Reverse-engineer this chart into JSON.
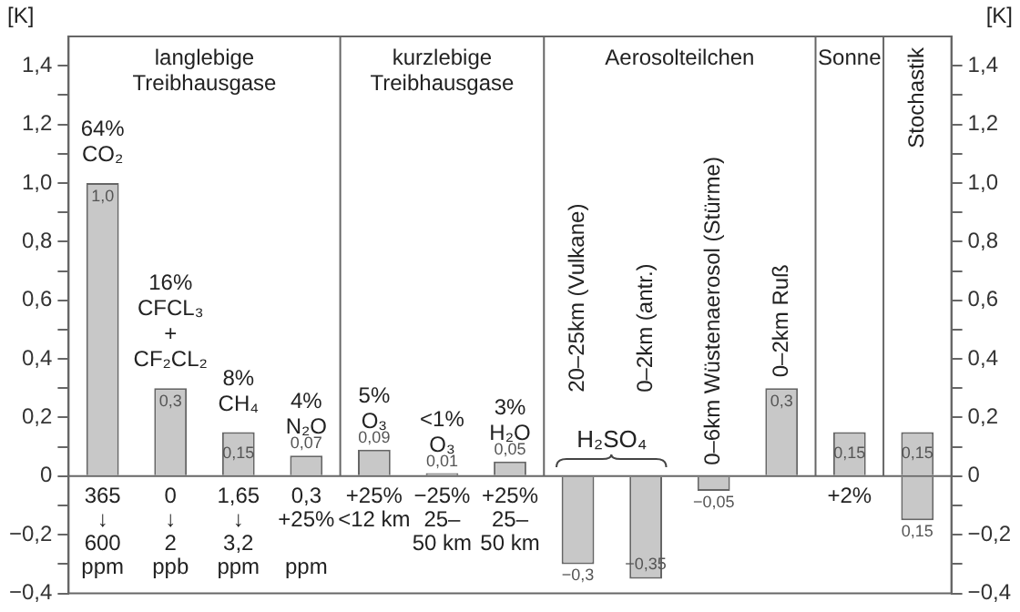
{
  "chart_data": {
    "type": "bar",
    "ylabel": "[K]",
    "y2label": "[K]",
    "categories": [
      "64%\nCO₂",
      "16%\nCFCL₃\n+\nCF₂CL₂",
      "8%\nCH₄",
      "4%\nN₂O",
      "5%\nO₃",
      "<1%\nO₃",
      "3%\nH₂O",
      "20–25km (Vulkane)",
      "0–2km (antr.)",
      "0–6km Wüstenaerosol (Stürme)",
      "0–2km Ruß",
      "Sonne",
      "Stochastik"
    ],
    "stacked": true,
    "series": [
      {
        "color": "#c8c8c8",
        "values": [
          1.0,
          0.3,
          0.15,
          0.07,
          0.09,
          0.01,
          0.05,
          -0.3,
          -0.35,
          -0.05,
          0.3,
          0.15,
          0.15
        ],
        "value_labels": [
          "1,0",
          "0,3",
          "0,15",
          "0,07",
          "0,09",
          "0,01",
          "0,05",
          "−0,3",
          "−0,35",
          "−0,05",
          "0,3",
          "0,15",
          "0,15"
        ]
      },
      {
        "color": "#c8c8c8",
        "values": [
          null,
          null,
          null,
          null,
          null,
          null,
          null,
          null,
          null,
          null,
          null,
          null,
          -0.15
        ],
        "value_labels": [
          null,
          null,
          null,
          null,
          null,
          null,
          null,
          null,
          null,
          null,
          null,
          null,
          null
        ]
      }
    ],
    "ylim": [
      -0.4,
      1.5
    ],
    "yticks": [
      {
        "value": -0.4,
        "label": "−0,4"
      },
      {
        "value": -0.3,
        "label": null
      },
      {
        "value": -0.2,
        "label": "−0,2"
      },
      {
        "value": -0.1,
        "label": null
      },
      0,
      {
        "value": 0.1,
        "label": null
      },
      {
        "value": 0.2,
        "label": "0,2"
      },
      {
        "value": 0.3,
        "label": null
      },
      {
        "value": 0.4,
        "label": "0,4"
      },
      {
        "value": 0.5,
        "label": null
      },
      {
        "value": 0.6,
        "label": "0,6"
      },
      {
        "value": 0.7,
        "label": null
      },
      {
        "value": 0.8,
        "label": "0,8"
      },
      {
        "value": 0.9,
        "label": null
      },
      {
        "value": 1.0,
        "label": "1,0"
      },
      {
        "value": 1.1,
        "label": null
      },
      {
        "value": 1.2,
        "label": "1,2"
      },
      {
        "value": 1.3,
        "label": null
      },
      {
        "value": 1.4,
        "label": "1,4"
      }
    ],
    "y2lim": [
      -0.4,
      1.5
    ],
    "y2ticks": [
      {
        "value": -0.4,
        "label": "−0,4"
      },
      {
        "value": -0.3,
        "label": null
      },
      {
        "value": -0.2,
        "label": "−0,2"
      },
      {
        "value": -0.1,
        "label": null
      },
      0,
      {
        "value": 0.1,
        "label": null
      },
      {
        "value": 0.2,
        "label": "0,2"
      },
      {
        "value": 0.3,
        "label": null
      },
      {
        "value": 0.4,
        "label": "0,4"
      },
      {
        "value": 0.5,
        "label": null
      },
      {
        "value": 0.6,
        "label": "0,6"
      },
      {
        "value": 0.7,
        "label": null
      },
      {
        "value": 0.8,
        "label": "0,8"
      },
      {
        "value": 0.9,
        "label": null
      },
      {
        "value": 1.0,
        "label": "1,0"
      },
      {
        "value": 1.1,
        "label": null
      },
      {
        "value": 1.2,
        "label": "1,2"
      },
      {
        "value": 1.3,
        "label": null
      },
      {
        "value": 1.4,
        "label": "1,4"
      }
    ],
    "annotations": [
      "langlebige\nTreibhausgase",
      "kurzlebige\nTreibhausgase",
      "Aerosolteilchen",
      "H₂SO₄",
      {
        "text": "365\n↓\n600\nppm",
        "x": "64%\nCO₂",
        "y": -0.02
      },
      {
        "text": "0\n↓\n2\nppb",
        "x": "16%\nCFCL₃\n+\nCF₂CL₂",
        "y": -0.02
      },
      {
        "text": "1,65\n↓\n3,2\nppm",
        "x": "8%\nCH₄",
        "y": -0.02
      },
      {
        "text": "0,3\n+25%\n\nppm",
        "x": "4%\nN₂O",
        "y": -0.02
      },
      {
        "text": "+25%\n<12 km",
        "x": "5%\nO₃",
        "y": -0.02
      },
      {
        "text": "−25%\n25–\n50 km",
        "x": "<1%\nO₃",
        "y": -0.02
      },
      {
        "text": "+25%\n25–\n50 km",
        "x": "3%\nH₂O",
        "y": -0.02
      },
      {
        "text": "+2%",
        "x": "Sonne",
        "y": -0.02
      },
      {
        "text": "0,15",
        "x": "Stochastik",
        "y": -0.15
      }
    ],
    "legend": false,
    "grid": false
  }
}
